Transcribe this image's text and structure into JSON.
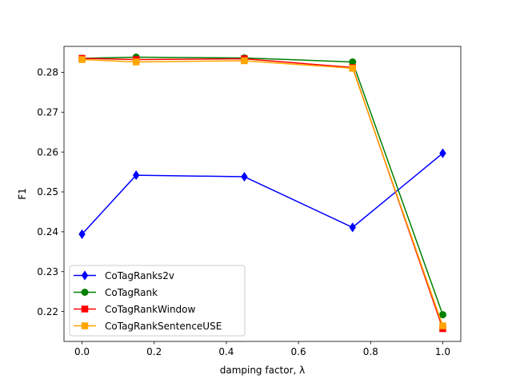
{
  "chart_data": {
    "type": "line",
    "xlabel": "damping factor, λ",
    "ylabel": "F1",
    "xlim": [
      -0.05,
      1.05
    ],
    "ylim": [
      0.2125,
      0.2865
    ],
    "xticks": [
      0.0,
      0.2,
      0.4,
      0.6,
      0.8,
      1.0
    ],
    "xtick_labels": [
      "0.0",
      "0.2",
      "0.4",
      "0.6",
      "0.8",
      "1.0"
    ],
    "yticks": [
      0.22,
      0.23,
      0.24,
      0.25,
      0.26,
      0.27,
      0.28
    ],
    "ytick_labels": [
      "0.22",
      "0.23",
      "0.24",
      "0.25",
      "0.26",
      "0.27",
      "0.28"
    ],
    "grid": false,
    "legend_position": "lower-left",
    "x": [
      0.0,
      0.15,
      0.45,
      0.75,
      1.0
    ],
    "series": [
      {
        "name": "CoTagRanks2v",
        "values": [
          0.2394,
          0.2542,
          0.2538,
          0.2411,
          0.2597
        ],
        "color": "#0000ff",
        "marker": "diamond"
      },
      {
        "name": "CoTagRank",
        "values": [
          0.2835,
          0.2838,
          0.2836,
          0.2826,
          0.2192
        ],
        "color": "#008000",
        "marker": "circle"
      },
      {
        "name": "CoTagRankWindow",
        "values": [
          0.2835,
          0.2832,
          0.2834,
          0.2812,
          0.2157
        ],
        "color": "#ff0000",
        "marker": "square"
      },
      {
        "name": "CoTagRankSentenceUSE",
        "values": [
          0.2832,
          0.2826,
          0.2829,
          0.281,
          0.2164
        ],
        "color": "#ffa500",
        "marker": "square"
      }
    ]
  }
}
